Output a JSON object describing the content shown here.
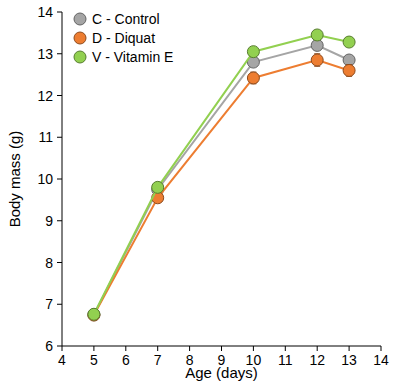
{
  "chart_data": {
    "type": "line",
    "x_label": "Age (days)",
    "y_label": "Body mass (g)",
    "x": [
      5,
      7,
      10,
      12,
      13
    ],
    "xlim": [
      4,
      14
    ],
    "xticks": [
      4,
      5,
      6,
      7,
      8,
      9,
      10,
      11,
      12,
      13,
      14
    ],
    "ylim": [
      6,
      14
    ],
    "yticks": [
      6,
      7,
      8,
      9,
      10,
      11,
      12,
      13,
      14
    ],
    "legend": "upper left",
    "marker": "circle",
    "series": [
      {
        "name": "C - Control",
        "color": "#a5a5a5",
        "values": [
          6.75,
          9.75,
          12.8,
          13.2,
          12.85
        ],
        "errors": [
          0.06,
          0.08,
          0.1,
          0.1,
          0.1
        ]
      },
      {
        "name": "D - Diquat",
        "color": "#ed7d31",
        "values": [
          6.74,
          9.55,
          12.42,
          12.85,
          12.6
        ],
        "errors": [
          0.06,
          0.1,
          0.14,
          0.15,
          0.14
        ]
      },
      {
        "name": "V - Vitamin E",
        "color": "#92d050",
        "values": [
          6.76,
          9.8,
          13.05,
          13.45,
          13.28
        ],
        "errors": [
          0.06,
          0.08,
          0.1,
          0.1,
          0.1
        ]
      }
    ]
  }
}
